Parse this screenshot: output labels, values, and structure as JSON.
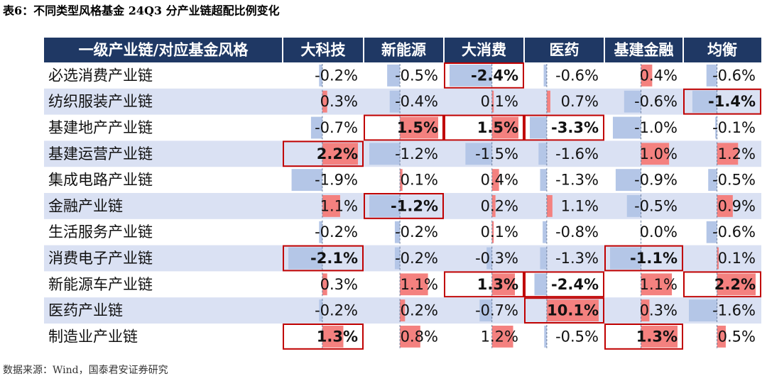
{
  "title": "表6：不同类型风格基金 24Q3 分产业链超配比例变化",
  "table": {
    "header": [
      "一级产业链/对应基金风格",
      "大科技",
      "新能源",
      "大消费",
      "医药",
      "基建金融",
      "均衡"
    ],
    "rows": [
      {
        "label": "必选消费产业链",
        "cells": [
          "-0.2%",
          "-0.5%",
          "-2.4%",
          "-0.6%",
          "0.4%",
          "-0.6%"
        ],
        "highlight": [
          2
        ]
      },
      {
        "label": "纺织服装产业链",
        "cells": [
          "0.3%",
          "-0.4%",
          "0.1%",
          "0.7%",
          "-0.6%",
          "-1.4%"
        ],
        "highlight": [
          5
        ]
      },
      {
        "label": "基建地产产业链",
        "cells": [
          "-0.7%",
          "1.5%",
          "1.5%",
          "-3.3%",
          "-1.0%",
          "-0.1%"
        ],
        "highlight": [
          1,
          2,
          3
        ]
      },
      {
        "label": "基建运营产业链",
        "cells": [
          "2.2%",
          "-1.2%",
          "-1.5%",
          "-1.6%",
          "1.0%",
          "1.2%"
        ],
        "highlight": [
          0
        ]
      },
      {
        "label": "集成电路产业链",
        "cells": [
          "-1.9%",
          "0.1%",
          "0.4%",
          "-1.3%",
          "-0.9%",
          "-0.5%"
        ],
        "highlight": []
      },
      {
        "label": "金融产业链",
        "cells": [
          "1.1%",
          "-1.2%",
          "0.2%",
          "1.1%",
          "-0.5%",
          "0.9%"
        ],
        "highlight": [
          1
        ]
      },
      {
        "label": "生活服务产业链",
        "cells": [
          "-0.2%",
          "-0.2%",
          "0.1%",
          "-0.8%",
          "0.0%",
          "-0.6%"
        ],
        "highlight": []
      },
      {
        "label": "消费电子产业链",
        "cells": [
          "-2.1%",
          "-0.2%",
          "-0.3%",
          "-1.3%",
          "-1.1%",
          "0.1%"
        ],
        "highlight": [
          0,
          4
        ]
      },
      {
        "label": "新能源车产业链",
        "cells": [
          "0.3%",
          "1.1%",
          "1.3%",
          "-2.4%",
          "1.1%",
          "2.2%"
        ],
        "highlight": [
          2,
          3,
          5
        ]
      },
      {
        "label": "医药产业链",
        "cells": [
          "-0.2%",
          "0.2%",
          "-0.7%",
          "10.1%",
          "0.3%",
          "-1.6%"
        ],
        "highlight": [
          3
        ]
      },
      {
        "label": "制造业产业链",
        "cells": [
          "1.3%",
          "0.8%",
          "1.2%",
          "-0.5%",
          "1.3%",
          "0.5%"
        ],
        "highlight": [
          0,
          4
        ]
      }
    ]
  },
  "source": "数据来源：Wind，国泰君安证券研究"
}
